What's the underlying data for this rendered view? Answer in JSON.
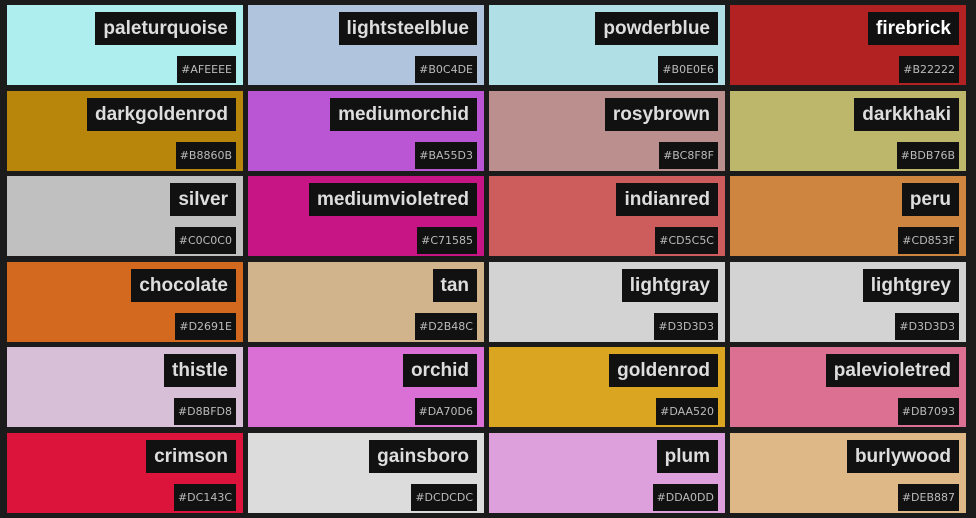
{
  "swatches": [
    {
      "name": "paleturquoise",
      "hex": "#AFEEEE"
    },
    {
      "name": "lightsteelblue",
      "hex": "#B0C4DE"
    },
    {
      "name": "powderblue",
      "hex": "#B0E0E6"
    },
    {
      "name": "firebrick",
      "hex": "#B22222"
    },
    {
      "name": "darkgoldenrod",
      "hex": "#B8860B"
    },
    {
      "name": "mediumorchid",
      "hex": "#BA55D3"
    },
    {
      "name": "rosybrown",
      "hex": "#BC8F8F"
    },
    {
      "name": "darkkhaki",
      "hex": "#BDB76B"
    },
    {
      "name": "silver",
      "hex": "#C0C0C0"
    },
    {
      "name": "mediumvioletred",
      "hex": "#C71585"
    },
    {
      "name": "indianred",
      "hex": "#CD5C5C"
    },
    {
      "name": "peru",
      "hex": "#CD853F"
    },
    {
      "name": "chocolate",
      "hex": "#D2691E"
    },
    {
      "name": "tan",
      "hex": "#D2B48C"
    },
    {
      "name": "lightgray",
      "hex": "#D3D3D3"
    },
    {
      "name": "lightgrey",
      "hex": "#D3D3D3"
    },
    {
      "name": "thistle",
      "hex": "#D8BFD8"
    },
    {
      "name": "orchid",
      "hex": "#DA70D6"
    },
    {
      "name": "goldenrod",
      "hex": "#DAA520"
    },
    {
      "name": "palevioletred",
      "hex": "#DB7093"
    },
    {
      "name": "crimson",
      "hex": "#DC143C"
    },
    {
      "name": "gainsboro",
      "hex": "#DCDCDC"
    },
    {
      "name": "plum",
      "hex": "#DDA0DD"
    },
    {
      "name": "burlywood",
      "hex": "#DEB887"
    }
  ]
}
